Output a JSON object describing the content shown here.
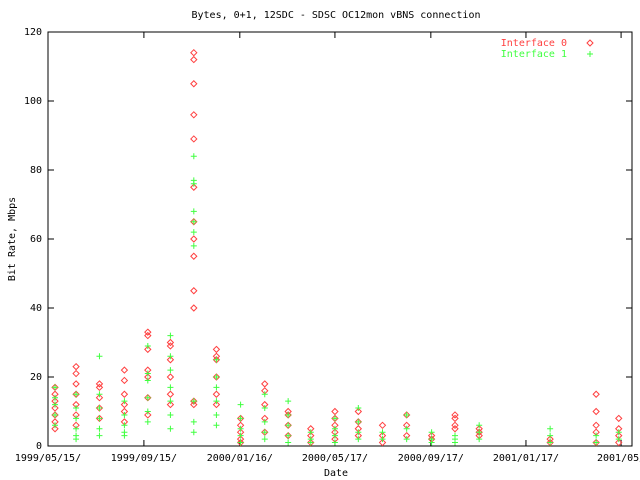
{
  "chart_data": {
    "type": "scatter",
    "title": "Bytes, 0+1, 12SDC - SDSC OC12mon vBNS connection",
    "x_label": "Date",
    "y_label": "Bit Rate, Mbps",
    "xlim": [
      "1999-05-15",
      "2001-06-02"
    ],
    "xticks": [
      {
        "value": "1999-05-15",
        "label": "1999/05/15/"
      },
      {
        "value": "1999-09-15",
        "label": "1999/09/15/"
      },
      {
        "value": "2000-01-16",
        "label": "2000/01/16/"
      },
      {
        "value": "2000-05-17",
        "label": "2000/05/17/"
      },
      {
        "value": "2000-09-17",
        "label": "2000/09/17/"
      },
      {
        "value": "2001-01-17",
        "label": "2001/01/17/"
      },
      {
        "value": "2001-05-19",
        "label": "2001/05/"
      }
    ],
    "ylim": [
      0,
      120
    ],
    "yticks": [
      0,
      20,
      40,
      60,
      80,
      100,
      120
    ],
    "legend": "top-right",
    "series": [
      {
        "name": "Interface 0",
        "color": "#ff4040",
        "marker": "diamond",
        "x": [
          "1999-05-24",
          "1999-05-24",
          "1999-05-24",
          "1999-05-24",
          "1999-05-24",
          "1999-05-24",
          "1999-05-24",
          "1999-06-20",
          "1999-06-20",
          "1999-06-20",
          "1999-06-20",
          "1999-06-20",
          "1999-06-20",
          "1999-06-20",
          "1999-07-20",
          "1999-07-20",
          "1999-07-20",
          "1999-07-20",
          "1999-07-20",
          "1999-08-21",
          "1999-08-21",
          "1999-08-21",
          "1999-08-21",
          "1999-08-21",
          "1999-08-21",
          "1999-09-20",
          "1999-09-20",
          "1999-09-20",
          "1999-09-20",
          "1999-09-20",
          "1999-09-20",
          "1999-09-20",
          "1999-10-19",
          "1999-10-19",
          "1999-10-19",
          "1999-10-19",
          "1999-10-19",
          "1999-10-19",
          "1999-11-18",
          "1999-11-18",
          "1999-11-18",
          "1999-11-18",
          "1999-11-18",
          "1999-11-18",
          "1999-11-18",
          "1999-11-18",
          "1999-11-18",
          "1999-11-18",
          "1999-11-18",
          "1999-11-18",
          "1999-11-18",
          "1999-12-17",
          "1999-12-17",
          "1999-12-17",
          "1999-12-17",
          "1999-12-17",
          "1999-12-17",
          "2000-01-17",
          "2000-01-17",
          "2000-01-17",
          "2000-01-17",
          "2000-01-17",
          "2000-02-17",
          "2000-02-17",
          "2000-02-17",
          "2000-02-17",
          "2000-02-17",
          "2000-03-18",
          "2000-03-18",
          "2000-03-18",
          "2000-03-18",
          "2000-04-16",
          "2000-04-16",
          "2000-04-16",
          "2000-05-17",
          "2000-05-17",
          "2000-05-17",
          "2000-05-17",
          "2000-05-17",
          "2000-06-16",
          "2000-06-16",
          "2000-06-16",
          "2000-06-16",
          "2000-07-17",
          "2000-07-17",
          "2000-07-17",
          "2000-08-17",
          "2000-08-17",
          "2000-08-17",
          "2000-09-18",
          "2000-09-18",
          "2000-10-18",
          "2000-10-18",
          "2000-10-18",
          "2000-10-18",
          "2000-11-18",
          "2000-11-18",
          "2000-11-18",
          "2001-02-17",
          "2001-02-17",
          "2001-04-17",
          "2001-04-17",
          "2001-04-17",
          "2001-04-17",
          "2001-04-17",
          "2001-05-16",
          "2001-05-16",
          "2001-05-16",
          "2001-05-16"
        ],
        "values": [
          17,
          15,
          13,
          11,
          9,
          7,
          5,
          23,
          21,
          18,
          15,
          12,
          9,
          6,
          18,
          17,
          14,
          11,
          8,
          22,
          19,
          15,
          12,
          10,
          7,
          33,
          32,
          28,
          22,
          20,
          14,
          9,
          30,
          29,
          25,
          20,
          15,
          12,
          114,
          112,
          105,
          96,
          89,
          75,
          65,
          60,
          55,
          45,
          40,
          13,
          12,
          28,
          26,
          25,
          20,
          15,
          12,
          8,
          6,
          4,
          2,
          1,
          18,
          16,
          12,
          8,
          4,
          10,
          9,
          6,
          3,
          5,
          3,
          1,
          10,
          8,
          6,
          4,
          2,
          10,
          7,
          5,
          3,
          6,
          3,
          1,
          9,
          6,
          3,
          3,
          2,
          9,
          8,
          6,
          5,
          5,
          4,
          3,
          2,
          1,
          15,
          10,
          6,
          4,
          1,
          8,
          5,
          3,
          1
        ]
      },
      {
        "name": "Interface 1",
        "color": "#40ff40",
        "marker": "plus",
        "x": [
          "1999-05-24",
          "1999-05-24",
          "1999-05-24",
          "1999-05-24",
          "1999-05-24",
          "1999-06-20",
          "1999-06-20",
          "1999-06-20",
          "1999-06-20",
          "1999-06-20",
          "1999-06-20",
          "1999-07-20",
          "1999-07-20",
          "1999-07-20",
          "1999-07-20",
          "1999-07-20",
          "1999-07-20",
          "1999-08-21",
          "1999-08-21",
          "1999-08-21",
          "1999-08-21",
          "1999-08-21",
          "1999-09-20",
          "1999-09-20",
          "1999-09-20",
          "1999-09-20",
          "1999-09-20",
          "1999-09-20",
          "1999-10-19",
          "1999-10-19",
          "1999-10-19",
          "1999-10-19",
          "1999-10-19",
          "1999-10-19",
          "1999-10-19",
          "1999-11-18",
          "1999-11-18",
          "1999-11-18",
          "1999-11-18",
          "1999-11-18",
          "1999-11-18",
          "1999-11-18",
          "1999-11-18",
          "1999-11-18",
          "1999-11-18",
          "1999-12-17",
          "1999-12-17",
          "1999-12-17",
          "1999-12-17",
          "1999-12-17",
          "1999-12-17",
          "2000-01-17",
          "2000-01-17",
          "2000-01-17",
          "2000-01-17",
          "2000-01-17",
          "2000-02-17",
          "2000-02-17",
          "2000-02-17",
          "2000-02-17",
          "2000-02-17",
          "2000-03-18",
          "2000-03-18",
          "2000-03-18",
          "2000-03-18",
          "2000-03-18",
          "2000-04-16",
          "2000-04-16",
          "2000-04-16",
          "2000-05-17",
          "2000-05-17",
          "2000-05-17",
          "2000-05-17",
          "2000-06-16",
          "2000-06-16",
          "2000-06-16",
          "2000-06-16",
          "2000-07-17",
          "2000-07-17",
          "2000-08-17",
          "2000-08-17",
          "2000-08-17",
          "2000-09-18",
          "2000-09-18",
          "2000-09-18",
          "2000-10-18",
          "2000-10-18",
          "2000-10-18",
          "2000-11-18",
          "2000-11-18",
          "2000-11-18",
          "2001-02-17",
          "2001-02-17",
          "2001-02-17",
          "2001-04-17",
          "2001-04-17",
          "2001-05-16",
          "2001-05-16"
        ],
        "values": [
          17,
          14,
          12,
          9,
          6,
          15,
          11,
          8,
          5,
          3,
          2,
          26,
          15,
          11,
          8,
          5,
          3,
          13,
          9,
          6,
          4,
          3,
          29,
          21,
          19,
          14,
          10,
          7,
          32,
          26,
          22,
          17,
          13,
          9,
          5,
          84,
          77,
          76,
          68,
          65,
          62,
          58,
          13,
          7,
          4,
          25,
          20,
          17,
          13,
          9,
          6,
          12,
          8,
          5,
          3,
          1,
          15,
          11,
          7,
          4,
          2,
          13,
          9,
          6,
          3,
          1,
          4,
          2,
          1,
          8,
          5,
          3,
          1,
          11,
          7,
          4,
          2,
          4,
          2,
          9,
          5,
          2,
          4,
          2,
          1,
          3,
          2,
          1,
          6,
          4,
          2,
          5,
          3,
          1,
          3,
          1,
          4,
          2
        ]
      }
    ]
  }
}
